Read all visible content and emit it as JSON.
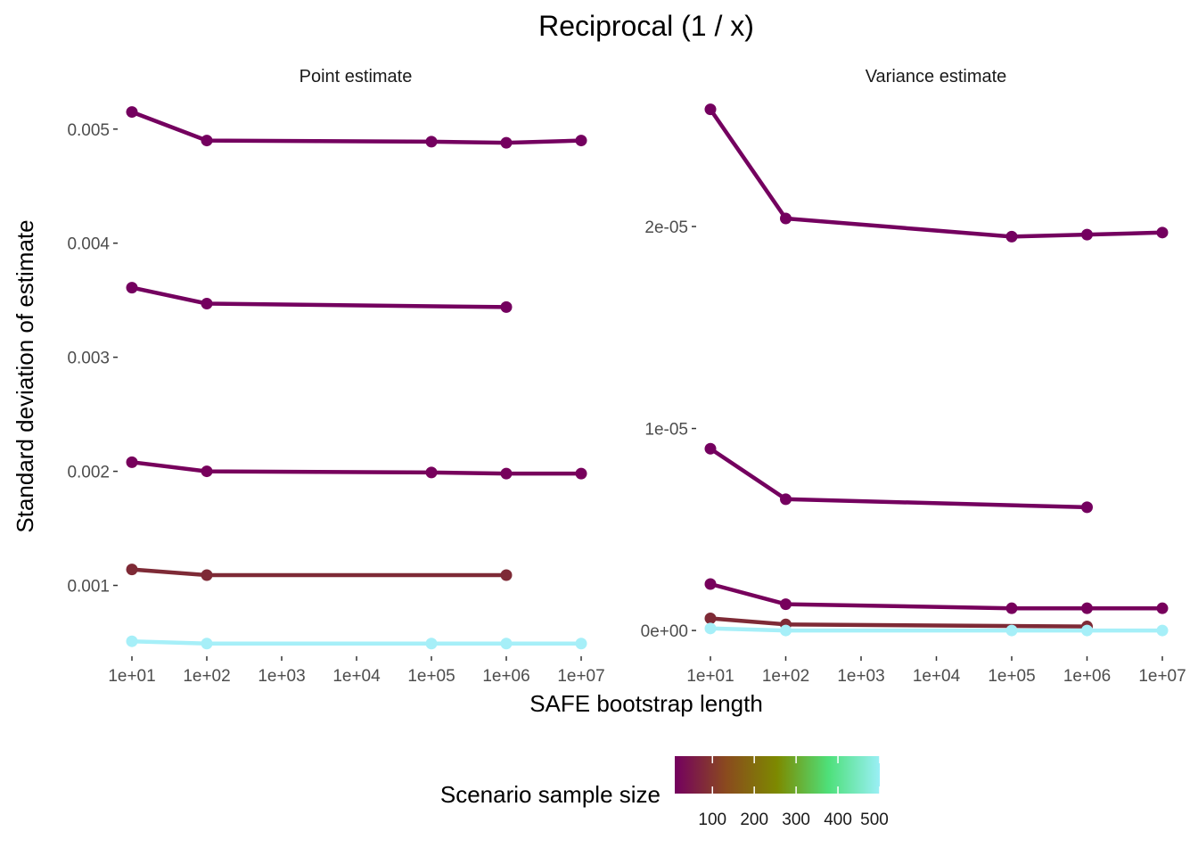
{
  "title": "Reciprocal (1 / x)",
  "xlabel": "SAFE bootstrap length",
  "ylabel": "Standard deviation of estimate",
  "legend": {
    "title": "Scenario sample size",
    "ticks": [
      "100",
      "200",
      "300",
      "400",
      "500"
    ],
    "colors": [
      "#74005f",
      "#8a4a1e",
      "#7d8a00",
      "#4ee07a",
      "#9aeff6"
    ]
  },
  "chart_data": [
    {
      "type": "line",
      "panel": "Point estimate",
      "xscale": "log10",
      "xlim": [
        10,
        10000000
      ],
      "ylim": [
        0.00041,
        0.00535
      ],
      "x_ticks": [
        "1e+01",
        "1e+02",
        "1e+03",
        "1e+04",
        "1e+05",
        "1e+06",
        "1e+07"
      ],
      "y_ticks": [
        {
          "value": 0.001,
          "label": "0.001"
        },
        {
          "value": 0.002,
          "label": "0.002"
        },
        {
          "value": 0.003,
          "label": "0.003"
        },
        {
          "value": 0.004,
          "label": "0.004"
        },
        {
          "value": 0.005,
          "label": "0.005"
        }
      ],
      "series": [
        {
          "color": "#74005f",
          "x": [
            10,
            100,
            100000,
            1000000,
            10000000
          ],
          "y": [
            0.00515,
            0.0049,
            0.00489,
            0.00488,
            0.0049
          ]
        },
        {
          "color": "#74005f",
          "x": [
            10,
            100,
            1000000
          ],
          "y": [
            0.00361,
            0.00347,
            0.00344
          ]
        },
        {
          "color": "#77005c",
          "x": [
            10,
            100,
            100000,
            1000000,
            10000000
          ],
          "y": [
            0.00208,
            0.002,
            0.00199,
            0.00198,
            0.00198
          ]
        },
        {
          "color": "#7e2a36",
          "x": [
            10,
            100,
            1000000
          ],
          "y": [
            0.00114,
            0.00109,
            0.00109
          ]
        },
        {
          "color": "#a6eff8",
          "x": [
            10,
            100,
            100000,
            1000000,
            10000000
          ],
          "y": [
            0.00051,
            0.00049,
            0.00049,
            0.00049,
            0.00049
          ]
        }
      ]
    },
    {
      "type": "line",
      "panel": "Variance estimate",
      "xscale": "log10",
      "xlim": [
        10,
        10000000
      ],
      "ylim": [
        -1.1e-06,
        2.68e-05
      ],
      "x_ticks": [
        "1e+01",
        "1e+02",
        "1e+03",
        "1e+04",
        "1e+05",
        "1e+06",
        "1e+07"
      ],
      "y_ticks": [
        {
          "value": 0,
          "label": "0e+00"
        },
        {
          "value": 1e-05,
          "label": "1e-05"
        },
        {
          "value": 2e-05,
          "label": "2e-05"
        }
      ],
      "series": [
        {
          "color": "#74005f",
          "x": [
            10,
            100,
            100000,
            1000000,
            10000000
          ],
          "y": [
            2.58e-05,
            2.04e-05,
            1.95e-05,
            1.96e-05,
            1.97e-05
          ]
        },
        {
          "color": "#74005f",
          "x": [
            10,
            100,
            1000000
          ],
          "y": [
            9e-06,
            6.5e-06,
            6.1e-06
          ]
        },
        {
          "color": "#77005c",
          "x": [
            10,
            100,
            100000,
            1000000,
            10000000
          ],
          "y": [
            2.3e-06,
            1.3e-06,
            1.1e-06,
            1.1e-06,
            1.1e-06
          ]
        },
        {
          "color": "#7e2a36",
          "x": [
            10,
            100,
            1000000
          ],
          "y": [
            6e-07,
            3e-07,
            2e-07
          ]
        },
        {
          "color": "#a6eff8",
          "x": [
            10,
            100,
            100000,
            1000000,
            10000000
          ],
          "y": [
            1e-07,
            0.0,
            0.0,
            0.0,
            0.0
          ]
        }
      ]
    }
  ]
}
